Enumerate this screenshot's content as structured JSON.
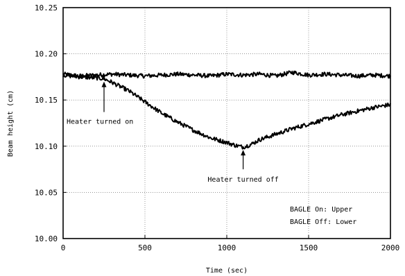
{
  "chart_data": {
    "type": "line",
    "title": "",
    "xlabel": "Time (sec)",
    "ylabel": "Beam height (cm)",
    "xlim": [
      0,
      2000
    ],
    "ylim": [
      10.0,
      10.25
    ],
    "xticks": [
      "0",
      "500",
      "1000",
      "1500",
      "2000"
    ],
    "yticks": [
      "10.00",
      "10.05",
      "10.10",
      "10.15",
      "10.20",
      "10.25"
    ],
    "grid": true,
    "series": [
      {
        "name": "BAGLE On: Upper",
        "x": [
          0,
          100,
          200,
          300,
          400,
          500,
          600,
          700,
          800,
          900,
          1000,
          1100,
          1200,
          1300,
          1400,
          1500,
          1600,
          1700,
          1800,
          1900,
          2000
        ],
        "y": [
          10.178,
          10.176,
          10.177,
          10.178,
          10.177,
          10.176,
          10.177,
          10.178,
          10.177,
          10.176,
          10.178,
          10.177,
          10.178,
          10.176,
          10.18,
          10.177,
          10.178,
          10.177,
          10.176,
          10.177,
          10.176
        ]
      },
      {
        "name": "BAGLE Off: Lower",
        "x": [
          0,
          100,
          200,
          250,
          300,
          400,
          500,
          600,
          700,
          800,
          900,
          1000,
          1050,
          1100,
          1150,
          1200,
          1300,
          1400,
          1500,
          1600,
          1700,
          1800,
          1900,
          2000
        ],
        "y": [
          10.177,
          10.175,
          10.174,
          10.173,
          10.169,
          10.16,
          10.148,
          10.136,
          10.126,
          10.117,
          10.109,
          10.104,
          10.101,
          10.099,
          10.102,
          10.107,
          10.113,
          10.119,
          10.124,
          10.129,
          10.134,
          10.138,
          10.142,
          10.145
        ]
      }
    ],
    "annotations": [
      {
        "text": "Heater turned on",
        "x": 250,
        "y": 10.173
      },
      {
        "text": "Heater turned off",
        "x": 1100,
        "y": 10.099
      }
    ],
    "legend": {
      "lines": [
        "BAGLE On: Upper",
        "BAGLE Off: Lower"
      ],
      "position": "bottom-right"
    }
  }
}
